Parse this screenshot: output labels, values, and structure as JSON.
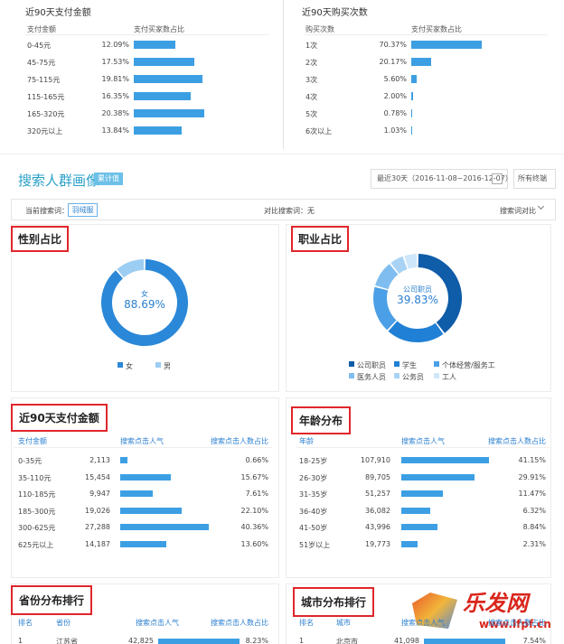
{
  "top_tables": [
    {
      "title": "近90天支付金额",
      "headers": [
        "支付金额",
        "支付买家数占比"
      ],
      "rows": [
        {
          "label": "0-45元",
          "value": 12.09,
          "value_label": "12.09%"
        },
        {
          "label": "45-75元",
          "value": 17.53,
          "value_label": "17.53%"
        },
        {
          "label": "75-115元",
          "value": 19.81,
          "value_label": "19.81%"
        },
        {
          "label": "115-165元",
          "value": 16.35,
          "value_label": "16.35%"
        },
        {
          "label": "165-320元",
          "value": 20.38,
          "value_label": "20.38%"
        },
        {
          "label": "320元以上",
          "value": 13.84,
          "value_label": "13.84%"
        }
      ]
    },
    {
      "title": "近90天购买次数",
      "headers": [
        "购买次数",
        "支付买家数占比"
      ],
      "rows": [
        {
          "label": "1次",
          "value": 70.37,
          "value_label": "70.37%"
        },
        {
          "label": "2次",
          "value": 20.17,
          "value_label": "20.17%"
        },
        {
          "label": "3次",
          "value": 5.6,
          "value_label": "5.60%"
        },
        {
          "label": "4次",
          "value": 2.0,
          "value_label": "2.00%"
        },
        {
          "label": "5次",
          "value": 0.78,
          "value_label": "0.78%"
        },
        {
          "label": "6次以上",
          "value": 1.03,
          "value_label": "1.03%"
        }
      ]
    }
  ],
  "search_header": {
    "title": "搜索人群画像",
    "badge": "累计值",
    "date_range": "最近30天（2016-11-08~2016-12-07）",
    "terminal": "所有终端",
    "current_label": "当前搜索词：",
    "current_term": "羽绒服",
    "compare_label": "对比搜索词：无",
    "compare_button": "搜索词对比"
  },
  "donuts": [
    {
      "title": "性别占比",
      "slices": [
        {
          "name": "女",
          "value": 88.69,
          "value_label": "88.69%",
          "color": "#2b88d8"
        },
        {
          "name": "男",
          "value": 11.31,
          "color": "#9ccdf2"
        }
      ]
    },
    {
      "title": "职业占比",
      "slices": [
        {
          "name": "公司职员",
          "value": 39.83,
          "value_label": "39.83%",
          "color": "#0f5ca8"
        },
        {
          "name": "学生",
          "value": 22,
          "color": "#1f80d6"
        },
        {
          "name": "个体经营/服务工",
          "value": 17.5,
          "color": "#4a9fe6"
        },
        {
          "name": "医务人员",
          "value": 10,
          "color": "#7fbdf0"
        },
        {
          "name": "公务员",
          "value": 5.5,
          "color": "#a8d3f5"
        },
        {
          "name": "工人",
          "value": 5.17,
          "color": "#cfe7fa"
        }
      ]
    }
  ],
  "mid_tables": [
    {
      "title": "近90天支付金额",
      "headers": [
        "支付金额",
        "搜索点击人气",
        "搜索点击人数占比"
      ],
      "rows": [
        {
          "label": "0-35元",
          "popularity": 2113,
          "popularity_label": "2,113",
          "share_label": "0.66%"
        },
        {
          "label": "35-110元",
          "popularity": 15454,
          "popularity_label": "15,454",
          "share_label": "15.67%"
        },
        {
          "label": "110-185元",
          "popularity": 9947,
          "popularity_label": "9,947",
          "share_label": "7.61%"
        },
        {
          "label": "185-300元",
          "popularity": 19026,
          "popularity_label": "19,026",
          "share_label": "22.10%"
        },
        {
          "label": "300-625元",
          "popularity": 27288,
          "popularity_label": "27,288",
          "share_label": "40.36%"
        },
        {
          "label": "625元以上",
          "popularity": 14187,
          "popularity_label": "14,187",
          "share_label": "13.60%"
        }
      ]
    },
    {
      "title": "年龄分布",
      "headers": [
        "年龄",
        "搜索点击人气",
        "搜索点击人数占比"
      ],
      "rows": [
        {
          "label": "18-25岁",
          "popularity": 107910,
          "popularity_label": "107,910",
          "share_label": "41.15%"
        },
        {
          "label": "26-30岁",
          "popularity": 89705,
          "popularity_label": "89,705",
          "share_label": "29.91%"
        },
        {
          "label": "31-35岁",
          "popularity": 51257,
          "popularity_label": "51,257",
          "share_label": "11.47%"
        },
        {
          "label": "36-40岁",
          "popularity": 36082,
          "popularity_label": "36,082",
          "share_label": "6.32%"
        },
        {
          "label": "41-50岁",
          "popularity": 43996,
          "popularity_label": "43,996",
          "share_label": "8.84%"
        },
        {
          "label": "51岁以上",
          "popularity": 19773,
          "popularity_label": "19,773",
          "share_label": "2.31%"
        }
      ]
    }
  ],
  "bottom_tables": [
    {
      "title": "省份分布排行",
      "headers": [
        "排名",
        "省份",
        "搜索点击人气",
        "搜索点击人数占比"
      ],
      "rows": [
        {
          "rank": 1,
          "label": "江苏省",
          "popularity": 42825,
          "popularity_label": "42,825",
          "share_label": "8.23%"
        }
      ]
    },
    {
      "title": "城市分布排行",
      "headers": [
        "排名",
        "城市",
        "搜索点击人气",
        "搜索点击人数占比"
      ],
      "rows": [
        {
          "rank": 1,
          "label": "北京市",
          "popularity": 41098,
          "popularity_label": "41,098",
          "share_label": "7.54%"
        }
      ]
    }
  ],
  "watermark": {
    "name": "乐发网",
    "url": "www.lfpf.cn"
  }
}
